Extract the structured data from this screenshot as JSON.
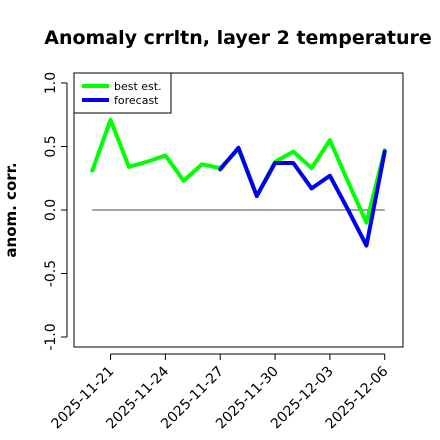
{
  "chart_data": {
    "type": "line",
    "title": "Anomaly crrltn, layer 2 temperature",
    "xlabel": "",
    "ylabel": "anom. corr.",
    "ylim": [
      -1.0,
      1.0
    ],
    "y_ticks": [
      "-1.0",
      "-0.5",
      "0.0",
      "0.5",
      "1.0"
    ],
    "y_tick_values": [
      -1.0,
      -0.5,
      0.0,
      0.5,
      1.0
    ],
    "x_ticks": [
      "2025-11-21",
      "2025-11-24",
      "2025-11-27",
      "2025-11-30",
      "2025-12-03",
      "2025-12-06"
    ],
    "x_tick_positions": [
      1,
      4,
      7,
      10,
      13,
      16
    ],
    "x_tick_colors": [
      "#000000",
      "#000000",
      "#228B22",
      "#000000",
      "#000000",
      "#000000"
    ],
    "x": [
      "2025-11-20",
      "2025-11-21",
      "2025-11-22",
      "2025-11-23",
      "2025-11-24",
      "2025-11-25",
      "2025-11-26",
      "2025-11-27",
      "2025-11-28",
      "2025-11-29",
      "2025-11-30",
      "2025-12-01",
      "2025-12-02",
      "2025-12-03",
      "2025-12-04",
      "2025-12-05",
      "2025-12-06"
    ],
    "xlim": [
      -1,
      17
    ],
    "reference_line": 0.0,
    "grid": false,
    "legend_position": "top-left",
    "series": [
      {
        "name": "best est.",
        "color": "#00ff00",
        "values": [
          0.31,
          0.71,
          0.34,
          0.38,
          0.43,
          0.23,
          0.36,
          0.33,
          0.48,
          0.11,
          0.38,
          0.46,
          0.33,
          0.55,
          0.22,
          -0.1,
          0.47
        ]
      },
      {
        "name": "forecast",
        "color": "#0000ee",
        "values": [
          null,
          null,
          null,
          null,
          null,
          null,
          null,
          0.32,
          0.49,
          0.11,
          0.37,
          0.37,
          0.17,
          0.27,
          0.0,
          -0.28,
          0.46
        ]
      }
    ]
  }
}
